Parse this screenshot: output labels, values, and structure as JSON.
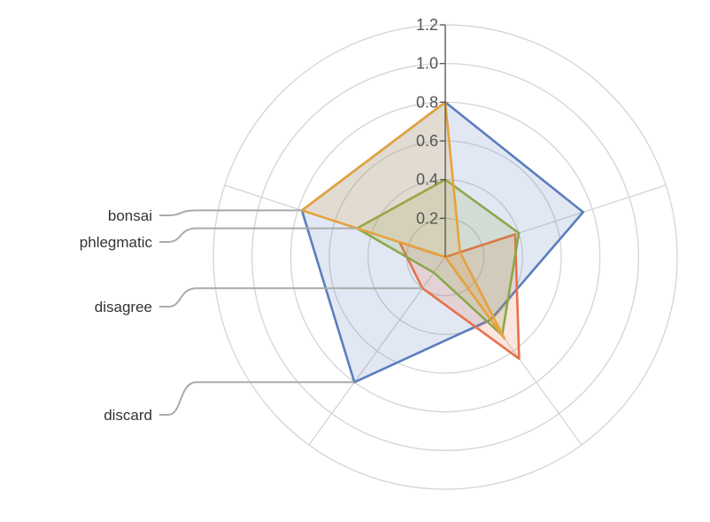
{
  "chart_data": {
    "type": "radar",
    "title": "",
    "axes": [
      "",
      "",
      "",
      "",
      ""
    ],
    "rlim": [
      0,
      1.2
    ],
    "ticks": [
      "0.2",
      "0.4",
      "0.6",
      "0.8",
      "1.0",
      "1.2"
    ],
    "grid": true,
    "series": [
      {
        "name": "discard",
        "color": "#5b7dbd",
        "fill": "rgba(91,125,189,0.18)",
        "values": [
          0.8,
          0.75,
          0.4,
          0.8,
          0.78
        ]
      },
      {
        "name": "disagree",
        "color": "#e8704b",
        "fill": "rgba(232,112,75,0.18)",
        "values": [
          0.0,
          0.38,
          0.65,
          0.2,
          0.25
        ]
      },
      {
        "name": "phlegmatic",
        "color": "#8aa84a",
        "fill": "rgba(138,168,74,0.18)",
        "values": [
          0.4,
          0.4,
          0.5,
          0.1,
          0.48
        ]
      },
      {
        "name": "bonsai",
        "color": "#e6a23c",
        "fill": "rgba(230,162,60,0.18)",
        "values": [
          0.8,
          0.08,
          0.52,
          0.0,
          0.78
        ]
      }
    ]
  }
}
